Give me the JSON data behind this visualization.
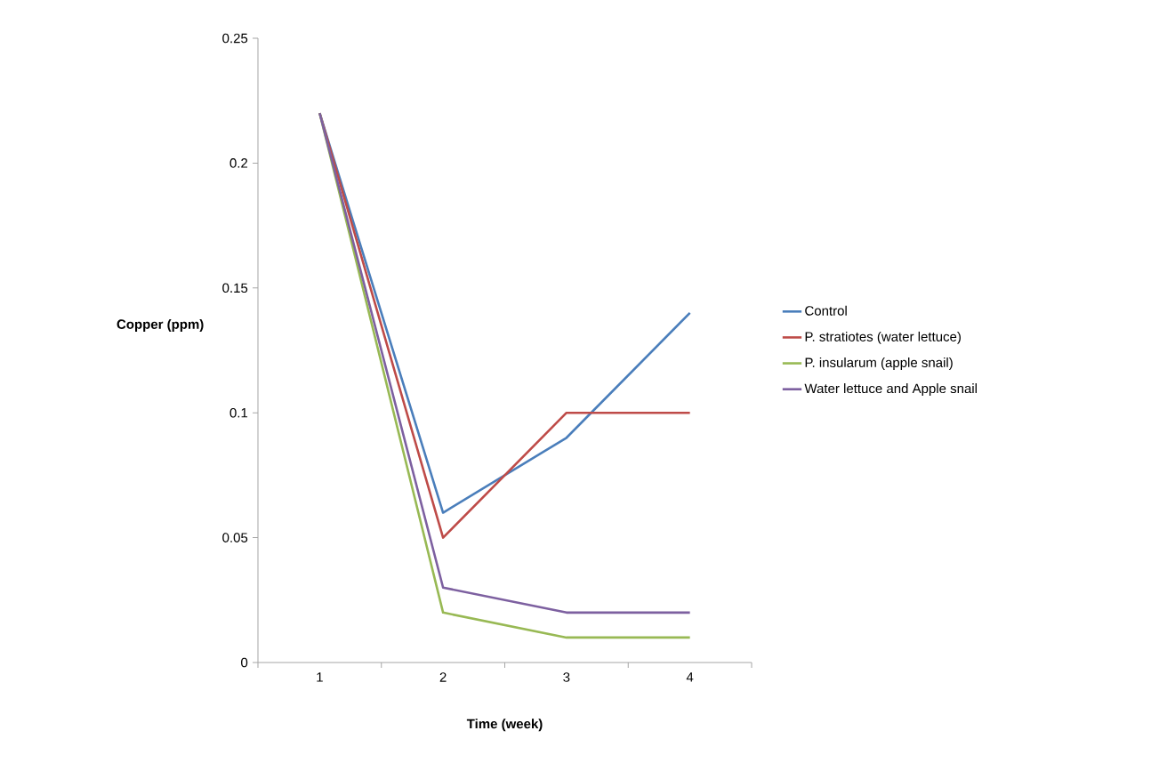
{
  "chart_data": {
    "type": "line",
    "xlabel": "Time (week)",
    "ylabel": "Copper (ppm)",
    "categories": [
      "1",
      "2",
      "3",
      "4"
    ],
    "series": [
      {
        "name": "Control",
        "color": "#4a7ebb",
        "values": [
          0.22,
          0.06,
          0.09,
          0.14
        ]
      },
      {
        "name": "P. stratiotes (water lettuce)",
        "color": "#be4b48",
        "values": [
          0.22,
          0.05,
          0.1,
          0.1
        ]
      },
      {
        "name": "P. insularum (apple snail)",
        "color": "#98b954",
        "values": [
          0.22,
          0.02,
          0.01,
          0.01
        ]
      },
      {
        "name": "Water lettuce and Apple snail",
        "color": "#7d60a0",
        "values": [
          0.22,
          0.03,
          0.02,
          0.02
        ]
      }
    ],
    "ylim": [
      0,
      0.25
    ],
    "yticks": [
      0,
      0.05,
      0.1,
      0.15,
      0.2,
      0.25
    ],
    "grid": false,
    "legend": "right",
    "marker": "none",
    "line_style": "solid"
  }
}
